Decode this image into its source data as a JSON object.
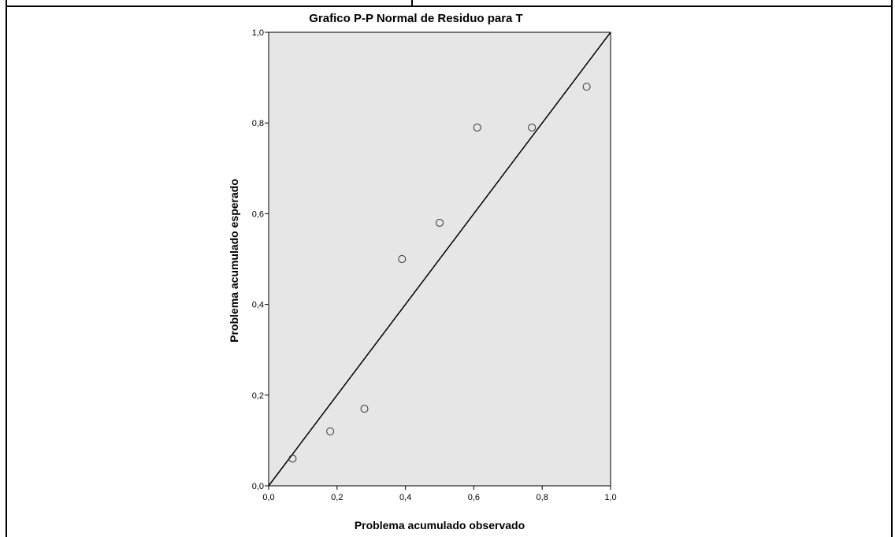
{
  "chart_data": {
    "type": "scatter",
    "title": "Grafico P-P Normal de Residuo para T",
    "xlabel": "Problema acumulado observado",
    "ylabel": "Problema acumulado esperado",
    "xlim": [
      0,
      1
    ],
    "ylim": [
      0,
      1
    ],
    "x_ticks": [
      "0,0",
      "0,2",
      "0,4",
      "0,6",
      "0,8",
      "1,0"
    ],
    "y_ticks": [
      "0,0",
      "0,2",
      "0,4",
      "0,6",
      "0,8",
      "1,0"
    ],
    "grid": false,
    "reference_line": {
      "from": [
        0,
        0
      ],
      "to": [
        1,
        1
      ]
    },
    "plot_background": "#e6e6e6",
    "marker": "open-circle",
    "points": [
      {
        "x": 0.07,
        "y": 0.06
      },
      {
        "x": 0.18,
        "y": 0.12
      },
      {
        "x": 0.28,
        "y": 0.17
      },
      {
        "x": 0.39,
        "y": 0.5
      },
      {
        "x": 0.5,
        "y": 0.58
      },
      {
        "x": 0.61,
        "y": 0.79
      },
      {
        "x": 0.77,
        "y": 0.79
      },
      {
        "x": 0.93,
        "y": 0.88
      }
    ]
  }
}
